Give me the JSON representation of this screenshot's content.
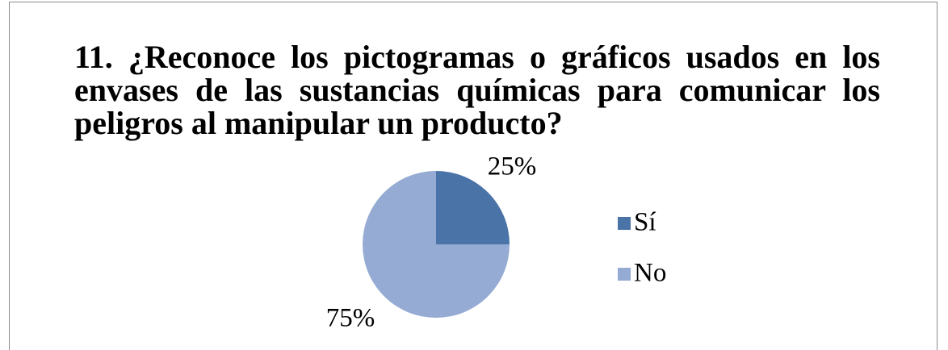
{
  "chart_data": {
    "type": "pie",
    "title": "11. ¿Reconoce los pictogramas o gráficos usados en los envases de las sustancias químicas para comunicar los peligros al manipular un producto?",
    "categories": [
      "Sí",
      "No"
    ],
    "values": [
      25,
      75
    ],
    "value_labels": [
      "25%",
      "75%"
    ],
    "colors": [
      "#4a73a8",
      "#95abd3"
    ],
    "legend": "right"
  }
}
